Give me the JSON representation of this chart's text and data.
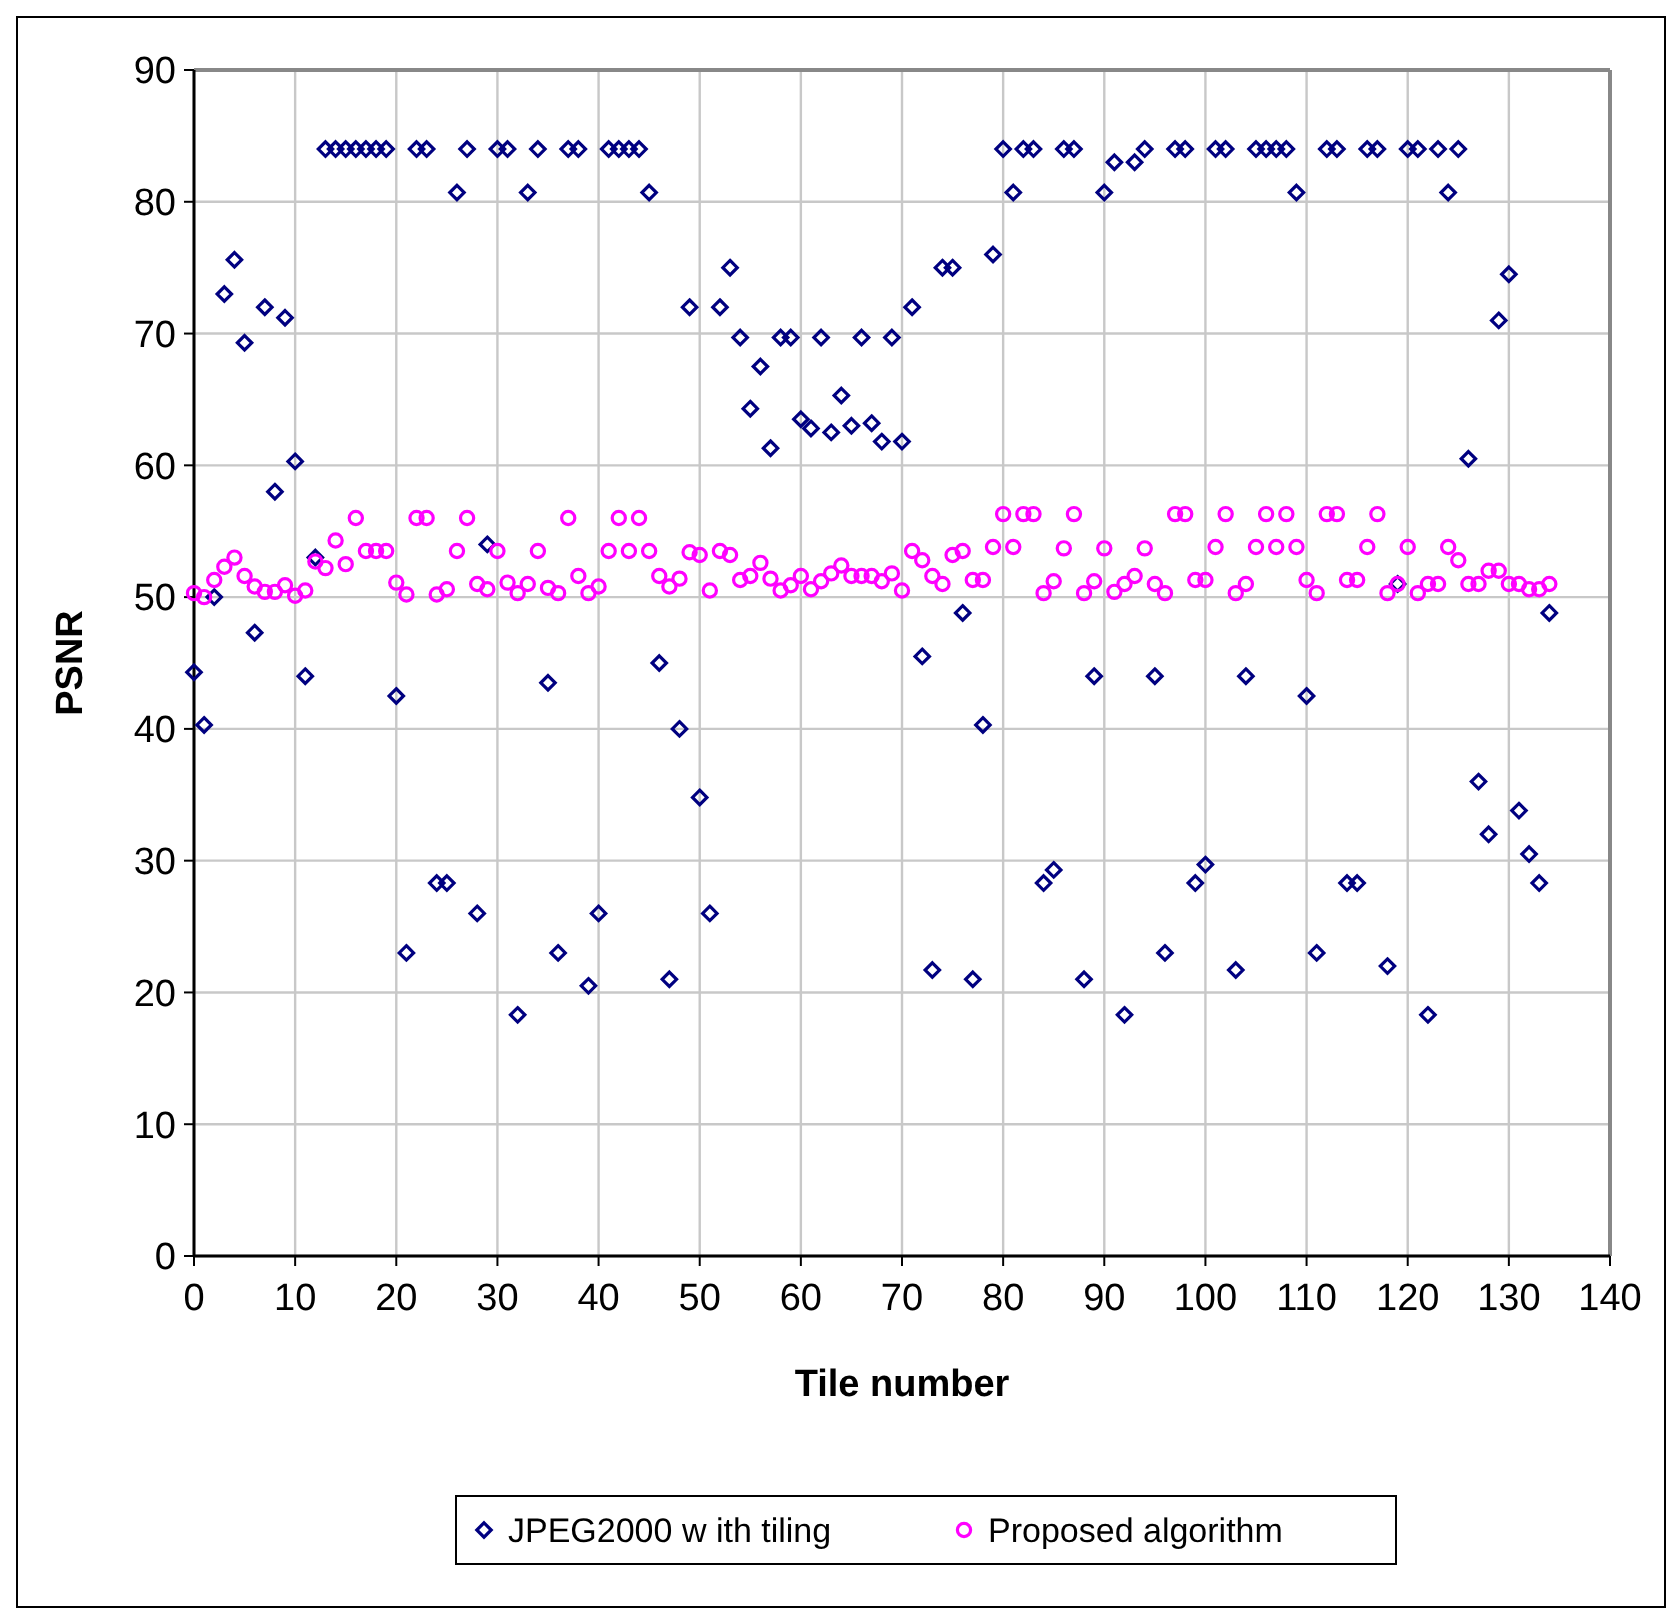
{
  "chart_data": {
    "type": "scatter",
    "xlabel": "Tile number",
    "ylabel": "PSNR",
    "xlim": [
      0,
      140
    ],
    "xticks": [
      0,
      10,
      20,
      30,
      40,
      50,
      60,
      70,
      80,
      90,
      100,
      110,
      120,
      130,
      140
    ],
    "ylim": [
      0,
      90
    ],
    "yticks": [
      0,
      10,
      20,
      30,
      40,
      50,
      60,
      70,
      80,
      90
    ],
    "grid": true,
    "legend": "bottom",
    "x": [
      0,
      1,
      2,
      3,
      4,
      5,
      6,
      7,
      8,
      9,
      10,
      11,
      12,
      13,
      14,
      15,
      16,
      17,
      18,
      19,
      20,
      21,
      22,
      23,
      24,
      25,
      26,
      27,
      28,
      29,
      30,
      31,
      32,
      33,
      34,
      35,
      36,
      37,
      38,
      39,
      40,
      41,
      42,
      43,
      44,
      45,
      46,
      47,
      48,
      49,
      50,
      51,
      52,
      53,
      54,
      55,
      56,
      57,
      58,
      59,
      60,
      61,
      62,
      63,
      64,
      65,
      66,
      67,
      68,
      69,
      70,
      71,
      72,
      73,
      74,
      75,
      76,
      77,
      78,
      79,
      80,
      81,
      82,
      83,
      84,
      85,
      86,
      87,
      88,
      89,
      90,
      91,
      92,
      93,
      94,
      95,
      96,
      97,
      98,
      99,
      100,
      101,
      102,
      103,
      104,
      105,
      106,
      107,
      108,
      109,
      110,
      111,
      112,
      113,
      114,
      115,
      116,
      117,
      118,
      119,
      120,
      121,
      122,
      123,
      124,
      125,
      126,
      127,
      128,
      129,
      130,
      131,
      132,
      133,
      134
    ],
    "series": [
      {
        "name": "JPEG2000 w ith tiling",
        "color": "#000080",
        "marker": "diamond",
        "values": [
          44.3,
          40.3,
          50,
          73,
          75.6,
          69.3,
          47.3,
          72,
          58,
          71.2,
          60.3,
          44,
          53,
          84,
          84,
          84,
          84,
          84,
          84,
          84,
          42.5,
          23,
          84,
          84,
          28.3,
          28.3,
          80.7,
          84,
          26,
          54,
          84,
          84,
          18.3,
          80.7,
          84,
          43.5,
          23,
          84,
          84,
          20.5,
          26,
          84,
          84,
          84,
          84,
          80.7,
          45,
          21,
          40,
          72,
          34.8,
          26,
          72,
          75,
          69.7,
          64.3,
          67.5,
          61.3,
          69.7,
          69.7,
          63.5,
          62.8,
          69.7,
          62.5,
          65.3,
          63,
          69.7,
          63.2,
          61.8,
          69.7,
          61.8,
          72,
          45.5,
          21.7,
          75,
          75,
          48.8,
          21,
          40.3,
          76,
          84,
          80.7,
          84,
          84,
          28.3,
          29.3,
          84,
          84,
          21,
          44,
          80.7,
          83,
          18.3,
          83,
          84,
          44,
          23,
          84,
          84,
          28.3,
          29.7,
          84,
          84,
          21.7,
          44,
          84,
          84,
          84,
          84,
          80.7,
          42.5,
          23,
          84,
          84,
          28.3,
          28.3,
          84,
          84,
          22,
          51,
          84,
          84,
          18.3,
          84,
          80.7,
          84,
          60.5,
          36,
          32,
          71,
          74.5,
          33.8,
          30.5,
          28.3,
          48.8
        ]
      },
      {
        "name": "Proposed algorithm",
        "color": "#ff00ff",
        "marker": "circle",
        "values": [
          50.3,
          50,
          51.3,
          52.3,
          53,
          51.6,
          50.8,
          50.4,
          50.4,
          50.9,
          50.1,
          50.5,
          52.7,
          52.2,
          54.3,
          52.5,
          56,
          53.5,
          53.5,
          53.5,
          51.1,
          50.2,
          56,
          56,
          50.2,
          50.6,
          53.5,
          56,
          51,
          50.6,
          53.5,
          51.1,
          50.3,
          51,
          53.5,
          50.7,
          50.3,
          56,
          51.6,
          50.3,
          50.8,
          53.5,
          56,
          53.5,
          56,
          53.5,
          51.6,
          50.8,
          51.4,
          53.4,
          53.2,
          50.5,
          53.5,
          53.2,
          51.3,
          51.6,
          52.6,
          51.4,
          50.5,
          50.9,
          51.6,
          50.6,
          51.2,
          51.8,
          52.4,
          51.6,
          51.6,
          51.6,
          51.2,
          51.8,
          50.5,
          53.5,
          52.8,
          51.6,
          51,
          53.2,
          53.5,
          51.3,
          51.3,
          53.8,
          56.3,
          53.8,
          56.3,
          56.3,
          50.3,
          51.2,
          53.7,
          56.3,
          50.3,
          51.2,
          53.7,
          50.4,
          51,
          51.6,
          53.7,
          51,
          50.3,
          56.3,
          56.3,
          51.3,
          51.3,
          53.8,
          56.3,
          50.3,
          51,
          53.8,
          56.3,
          53.8,
          56.3,
          53.8,
          51.3,
          50.3,
          56.3,
          56.3,
          51.3,
          51.3,
          53.8,
          56.3,
          50.3,
          51,
          53.8,
          50.3,
          51,
          51,
          53.8,
          52.8,
          51,
          51,
          52,
          52,
          51,
          51,
          50.6,
          50.6,
          51
        ]
      }
    ]
  }
}
